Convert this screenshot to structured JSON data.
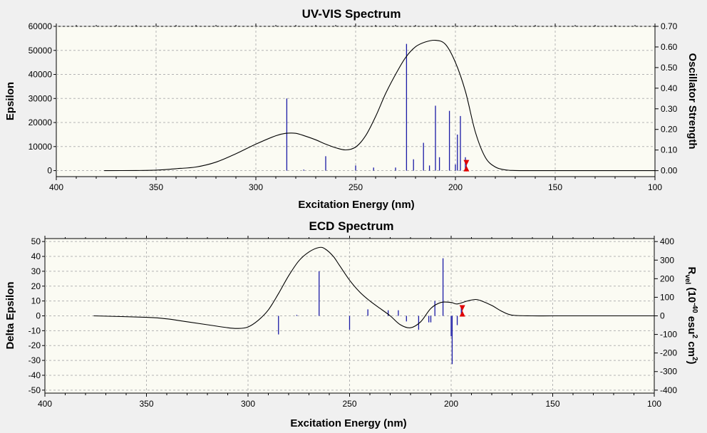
{
  "colors": {
    "background": "#f0f0f0",
    "plot_bg": "#fbfbf3",
    "stick": "#1a1aa6",
    "curve": "#000000",
    "marker": "#e00000",
    "grid": "#b4b4b4"
  },
  "chart_data": [
    {
      "type": "line",
      "title": "UV-VIS Spectrum",
      "xlabel": "Excitation Energy (nm)",
      "ylabel": "Epsilon",
      "y2label": "Oscillator Strength",
      "xlim": [
        400,
        100
      ],
      "ylim": [
        -2500,
        60000
      ],
      "y2lim": [
        -0.029,
        0.7
      ],
      "x_ticks": [
        400,
        350,
        300,
        250,
        200,
        150,
        100
      ],
      "y_ticks": [
        0,
        10000,
        20000,
        30000,
        40000,
        50000,
        60000
      ],
      "y2_ticks": [
        "0.00",
        "0.10",
        "0.20",
        "0.30",
        "0.40",
        "0.50",
        "0.60",
        "0.70"
      ],
      "grid": true,
      "curve": {
        "name": "Epsilon",
        "x": [
          376,
          360,
          350,
          340,
          330,
          320,
          310,
          300,
          290,
          285,
          280,
          275,
          270,
          265,
          260,
          255,
          250,
          245,
          240,
          235,
          230,
          225,
          220,
          215,
          210,
          205,
          200,
          195,
          190,
          185,
          180,
          175,
          170,
          160,
          150,
          130,
          100
        ],
        "y": [
          0,
          50,
          200,
          800,
          1500,
          3500,
          7000,
          11000,
          14500,
          15500,
          15500,
          14300,
          12800,
          11000,
          9500,
          8600,
          9800,
          14500,
          22500,
          32000,
          40000,
          47000,
          51500,
          53500,
          54200,
          52500,
          45000,
          33000,
          16000,
          5500,
          1500,
          300,
          50,
          0,
          0,
          0,
          0
        ]
      },
      "sticks": {
        "name": "Oscillator Strength",
        "x": [
          284.5,
          276,
          265,
          250,
          241,
          230,
          224.5,
          221,
          216,
          213,
          210,
          208,
          203,
          200,
          199,
          197.5,
          195
        ],
        "y": [
          0.35,
          0.005,
          0.07,
          0.025,
          0.015,
          0.015,
          0.615,
          0.055,
          0.135,
          0.025,
          0.315,
          0.065,
          0.29,
          0.03,
          0.175,
          0.265,
          0.065
        ]
      },
      "marker_x": 194.5
    },
    {
      "type": "line",
      "title": "ECD Spectrum",
      "xlabel": "Excitation Energy (nm)",
      "ylabel": "Delta Epsilon",
      "y2label_main": "R",
      "y2label_sub": "vel",
      "y2label_rest1": " (10",
      "y2label_exp1": "-40",
      "y2label_rest2": " esu",
      "y2label_exp2": "2",
      "y2label_rest3": " cm",
      "y2label_exp3": "2",
      "y2label_end": ")",
      "xlim": [
        400,
        100
      ],
      "ylim": [
        -52,
        52
      ],
      "y2lim": [
        -416,
        416
      ],
      "x_ticks": [
        400,
        350,
        300,
        250,
        200,
        150,
        100
      ],
      "y_ticks": [
        -50,
        -40,
        -30,
        -20,
        -10,
        0,
        10,
        20,
        30,
        40,
        50
      ],
      "y2_ticks": [
        -400,
        -300,
        -200,
        -100,
        0,
        100,
        200,
        300,
        400
      ],
      "grid": true,
      "curve": {
        "name": "Delta Epsilon",
        "x": [
          376,
          350,
          340,
          330,
          320,
          310,
          305,
          300,
          295,
          290,
          285,
          280,
          275,
          270,
          265,
          262,
          258,
          255,
          250,
          245,
          240,
          235,
          230,
          225,
          220,
          215,
          210,
          205,
          200,
          197,
          192,
          188,
          185,
          180,
          175,
          170,
          160,
          150,
          130,
          100
        ],
        "y": [
          0,
          -1,
          -2,
          -4,
          -6,
          -8,
          -8.5,
          -7.5,
          -3,
          4,
          15,
          27,
          37,
          43,
          46,
          45,
          40,
          34,
          24,
          16,
          10,
          5,
          0,
          -6,
          -8,
          -4,
          5,
          9,
          9,
          8,
          10,
          11,
          10,
          7,
          3,
          0.5,
          0,
          0,
          0,
          0
        ]
      },
      "sticks": {
        "name": "Rvel",
        "x": [
          285,
          276,
          265,
          250,
          241,
          231,
          226,
          222,
          216,
          211,
          210,
          208,
          204,
          200,
          199.5,
          197,
          195
        ],
        "y": [
          -100,
          5,
          240,
          -75,
          35,
          30,
          30,
          -30,
          -75,
          -35,
          -35,
          80,
          310,
          -110,
          -260,
          -50,
          55
        ]
      },
      "marker_x": 194.5
    }
  ]
}
